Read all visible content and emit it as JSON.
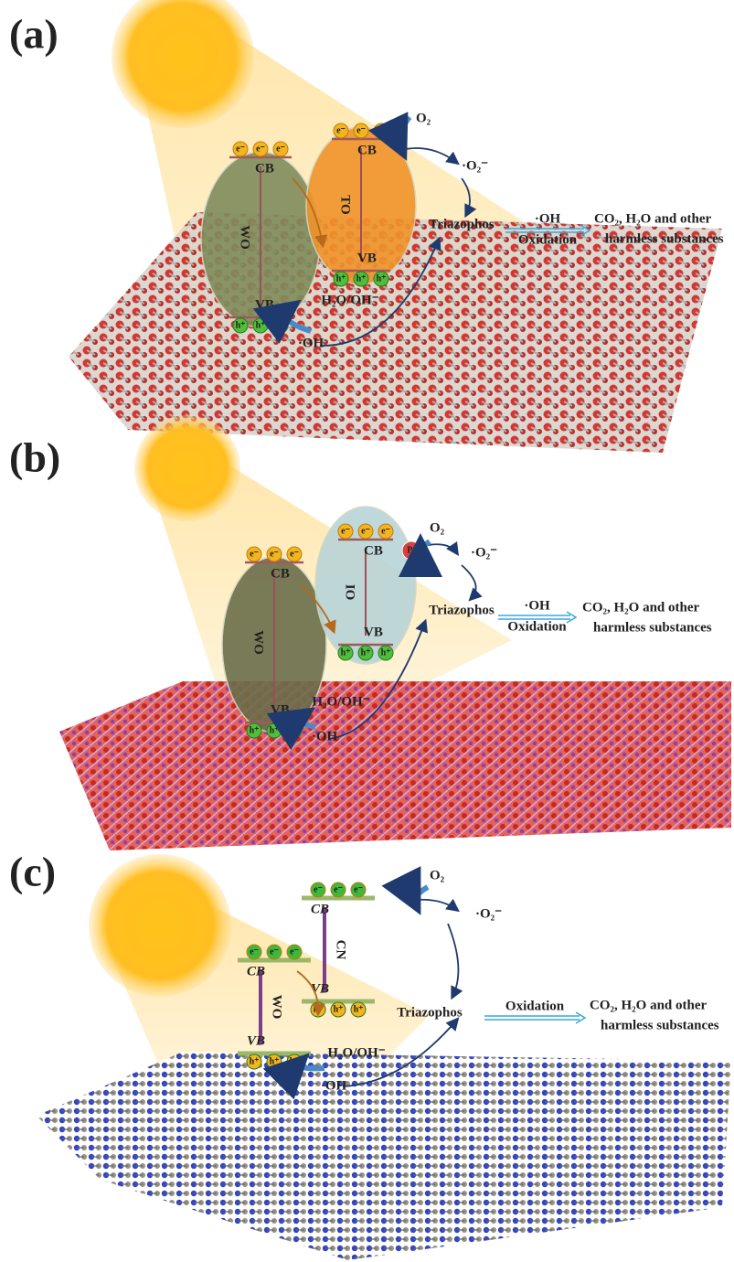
{
  "panels": [
    {
      "label": "(a)",
      "semiconductors": [
        {
          "name": "WO",
          "cb": "CB",
          "vb": "VB"
        },
        {
          "name": "TO",
          "cb": "CB",
          "vb": "VB"
        }
      ],
      "electron": "e⁻",
      "hole": "h⁺",
      "oxygen": "O₂",
      "superoxide": "·O₂⁻",
      "water": "H₂O/OH⁻",
      "hydroxyl": "·OH",
      "pollutant": "Triazophos",
      "arrow_top": "·OH",
      "arrow_bottom": "Oxidation",
      "products": [
        "CO₂, H₂O and other",
        "harmless substances"
      ]
    },
    {
      "label": "(b)",
      "semiconductors": [
        {
          "name": "WO",
          "cb": "CB",
          "vb": "VB"
        },
        {
          "name": "IO",
          "cb": "CB",
          "vb": "VB"
        }
      ],
      "cocatalyst": "Pt",
      "electron": "e⁻",
      "hole": "h⁺",
      "oxygen": "O₂",
      "superoxide": "·O₂⁻",
      "water": "H₂O/OH⁻",
      "hydroxyl": "·OH",
      "pollutant": "Triazophos",
      "arrow_top": "·OH",
      "arrow_bottom": "Oxidation",
      "products": [
        "CO₂, H₂O and other",
        "harmless substances"
      ]
    },
    {
      "label": "(c)",
      "semiconductors": [
        {
          "name": "WO",
          "cb": "CB",
          "vb": "VB"
        },
        {
          "name": "CN",
          "cb": "CB",
          "vb": "VB"
        }
      ],
      "electron": "e⁻",
      "hole": "h⁺",
      "oxygen": "O₂",
      "superoxide": "·O₂⁻",
      "water": "H₂O/OH⁻",
      "hydroxyl": "·OH",
      "pollutant": "Triazophos",
      "arrow_bottom": "Oxidation",
      "products": [
        "CO₂, H₂O and other",
        "harmless substances"
      ]
    }
  ]
}
